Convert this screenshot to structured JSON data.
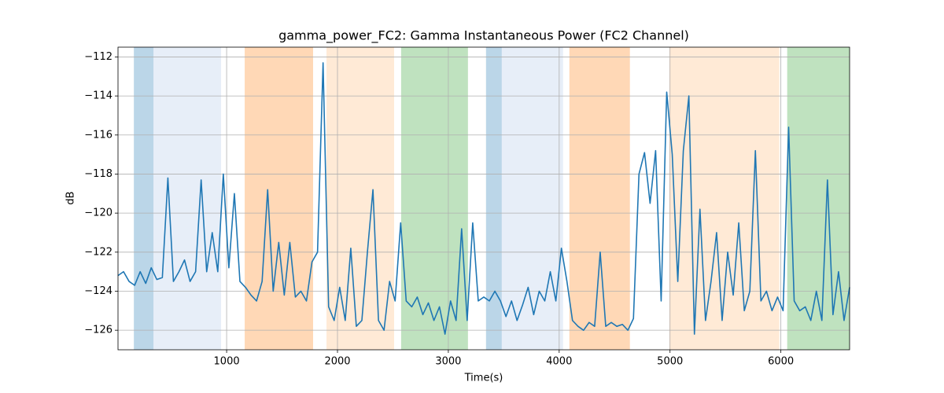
{
  "chart_data": {
    "type": "line",
    "title": "gamma_power_FC2: Gamma Instantaneous Power (FC2 Channel)",
    "x_label": "Time(s)",
    "y_label": "dB",
    "xlim": [
      20,
      6620
    ],
    "ylim": [
      -127.0,
      -111.5
    ],
    "xticks": [
      1000,
      2000,
      3000,
      4000,
      5000,
      6000
    ],
    "yticks": [
      {
        "value": -126,
        "label": "−126"
      },
      {
        "value": -124,
        "label": "−124"
      },
      {
        "value": -122,
        "label": "−122"
      },
      {
        "value": -120,
        "label": "−120"
      },
      {
        "value": -118,
        "label": "−118"
      },
      {
        "value": -116,
        "label": "−116"
      },
      {
        "value": -114,
        "label": "−114"
      },
      {
        "value": -112,
        "label": "−112"
      }
    ],
    "grid": true,
    "spans": [
      {
        "start": 163,
        "end": 340,
        "color": "#1f77b4",
        "alpha": 0.3
      },
      {
        "start": 340,
        "end": 950,
        "color": "#aec7e8",
        "alpha": 0.3
      },
      {
        "start": 1163,
        "end": 1780,
        "color": "#ff7f0e",
        "alpha": 0.3
      },
      {
        "start": 1901,
        "end": 2511,
        "color": "#ffbb78",
        "alpha": 0.3
      },
      {
        "start": 2574,
        "end": 3177,
        "color": "#2ca02c",
        "alpha": 0.3
      },
      {
        "start": 3340,
        "end": 3482,
        "color": "#1f77b4",
        "alpha": 0.3
      },
      {
        "start": 3482,
        "end": 4035,
        "color": "#aec7e8",
        "alpha": 0.3
      },
      {
        "start": 4092,
        "end": 4638,
        "color": "#ff7f0e",
        "alpha": 0.3
      },
      {
        "start": 4993,
        "end": 5986,
        "color": "#ffbb78",
        "alpha": 0.3
      },
      {
        "start": 6057,
        "end": 6620,
        "color": "#2ca02c",
        "alpha": 0.3
      }
    ],
    "x": [
      20,
      70,
      120,
      170,
      220,
      270,
      320,
      370,
      420,
      470,
      520,
      570,
      620,
      670,
      720,
      770,
      820,
      870,
      920,
      970,
      1020,
      1070,
      1120,
      1170,
      1220,
      1270,
      1320,
      1370,
      1420,
      1470,
      1520,
      1570,
      1620,
      1670,
      1720,
      1770,
      1820,
      1870,
      1920,
      1970,
      2020,
      2070,
      2120,
      2170,
      2220,
      2270,
      2320,
      2370,
      2420,
      2470,
      2520,
      2570,
      2620,
      2670,
      2720,
      2770,
      2820,
      2870,
      2920,
      2970,
      3020,
      3070,
      3120,
      3170,
      3220,
      3270,
      3320,
      3370,
      3420,
      3470,
      3520,
      3570,
      3620,
      3670,
      3720,
      3770,
      3820,
      3870,
      3920,
      3970,
      4020,
      4070,
      4120,
      4170,
      4220,
      4270,
      4320,
      4370,
      4420,
      4470,
      4520,
      4570,
      4620,
      4670,
      4720,
      4770,
      4820,
      4870,
      4920,
      4970,
      5020,
      5070,
      5120,
      5170,
      5220,
      5270,
      5320,
      5370,
      5420,
      5470,
      5520,
      5570,
      5620,
      5670,
      5720,
      5770,
      5820,
      5870,
      5920,
      5970,
      6020,
      6070,
      6120,
      6170,
      6220,
      6270,
      6320,
      6370,
      6420,
      6470,
      6520,
      6570,
      6620
    ],
    "series": [
      {
        "color": "#1f77b4",
        "values": [
          -123.2,
          -123.0,
          -123.5,
          -123.7,
          -123.0,
          -123.6,
          -122.8,
          -123.4,
          -123.3,
          -118.2,
          -123.5,
          -123.0,
          -122.4,
          -123.5,
          -123.0,
          -118.3,
          -123.0,
          -121.0,
          -123.0,
          -118.0,
          -122.8,
          -119.0,
          -123.5,
          -123.8,
          -124.2,
          -124.5,
          -123.5,
          -118.8,
          -124.0,
          -121.5,
          -124.2,
          -121.5,
          -124.3,
          -124.0,
          -124.5,
          -122.5,
          -122.0,
          -112.3,
          -124.8,
          -125.5,
          -123.8,
          -125.5,
          -121.8,
          -125.8,
          -125.5,
          -122.0,
          -118.8,
          -125.5,
          -126.0,
          -123.5,
          -124.5,
          -120.5,
          -124.5,
          -124.8,
          -124.3,
          -125.2,
          -124.6,
          -125.5,
          -124.8,
          -126.2,
          -124.5,
          -125.5,
          -120.8,
          -125.5,
          -120.5,
          -124.5,
          -124.3,
          -124.5,
          -124.0,
          -124.5,
          -125.3,
          -124.5,
          -125.5,
          -124.7,
          -123.8,
          -125.2,
          -124.0,
          -124.5,
          -123.0,
          -124.5,
          -121.8,
          -123.5,
          -125.5,
          -125.8,
          -126.0,
          -125.6,
          -125.8,
          -122.0,
          -125.8,
          -125.6,
          -125.8,
          -125.7,
          -126.0,
          -125.4,
          -118.0,
          -116.9,
          -119.5,
          -116.8,
          -124.5,
          -113.8,
          -117.0,
          -123.5,
          -116.8,
          -114.0,
          -126.2,
          -119.8,
          -125.5,
          -123.5,
          -121.0,
          -125.5,
          -122.0,
          -124.2,
          -120.5,
          -125.0,
          -124.0,
          -116.8,
          -124.5,
          -124.0,
          -125.0,
          -124.3,
          -125.0,
          -115.6,
          -124.5,
          -125.0,
          -124.8,
          -125.5,
          -124.0,
          -125.5,
          -118.3,
          -125.2,
          -123.0,
          -125.5,
          -123.8
        ]
      }
    ]
  }
}
